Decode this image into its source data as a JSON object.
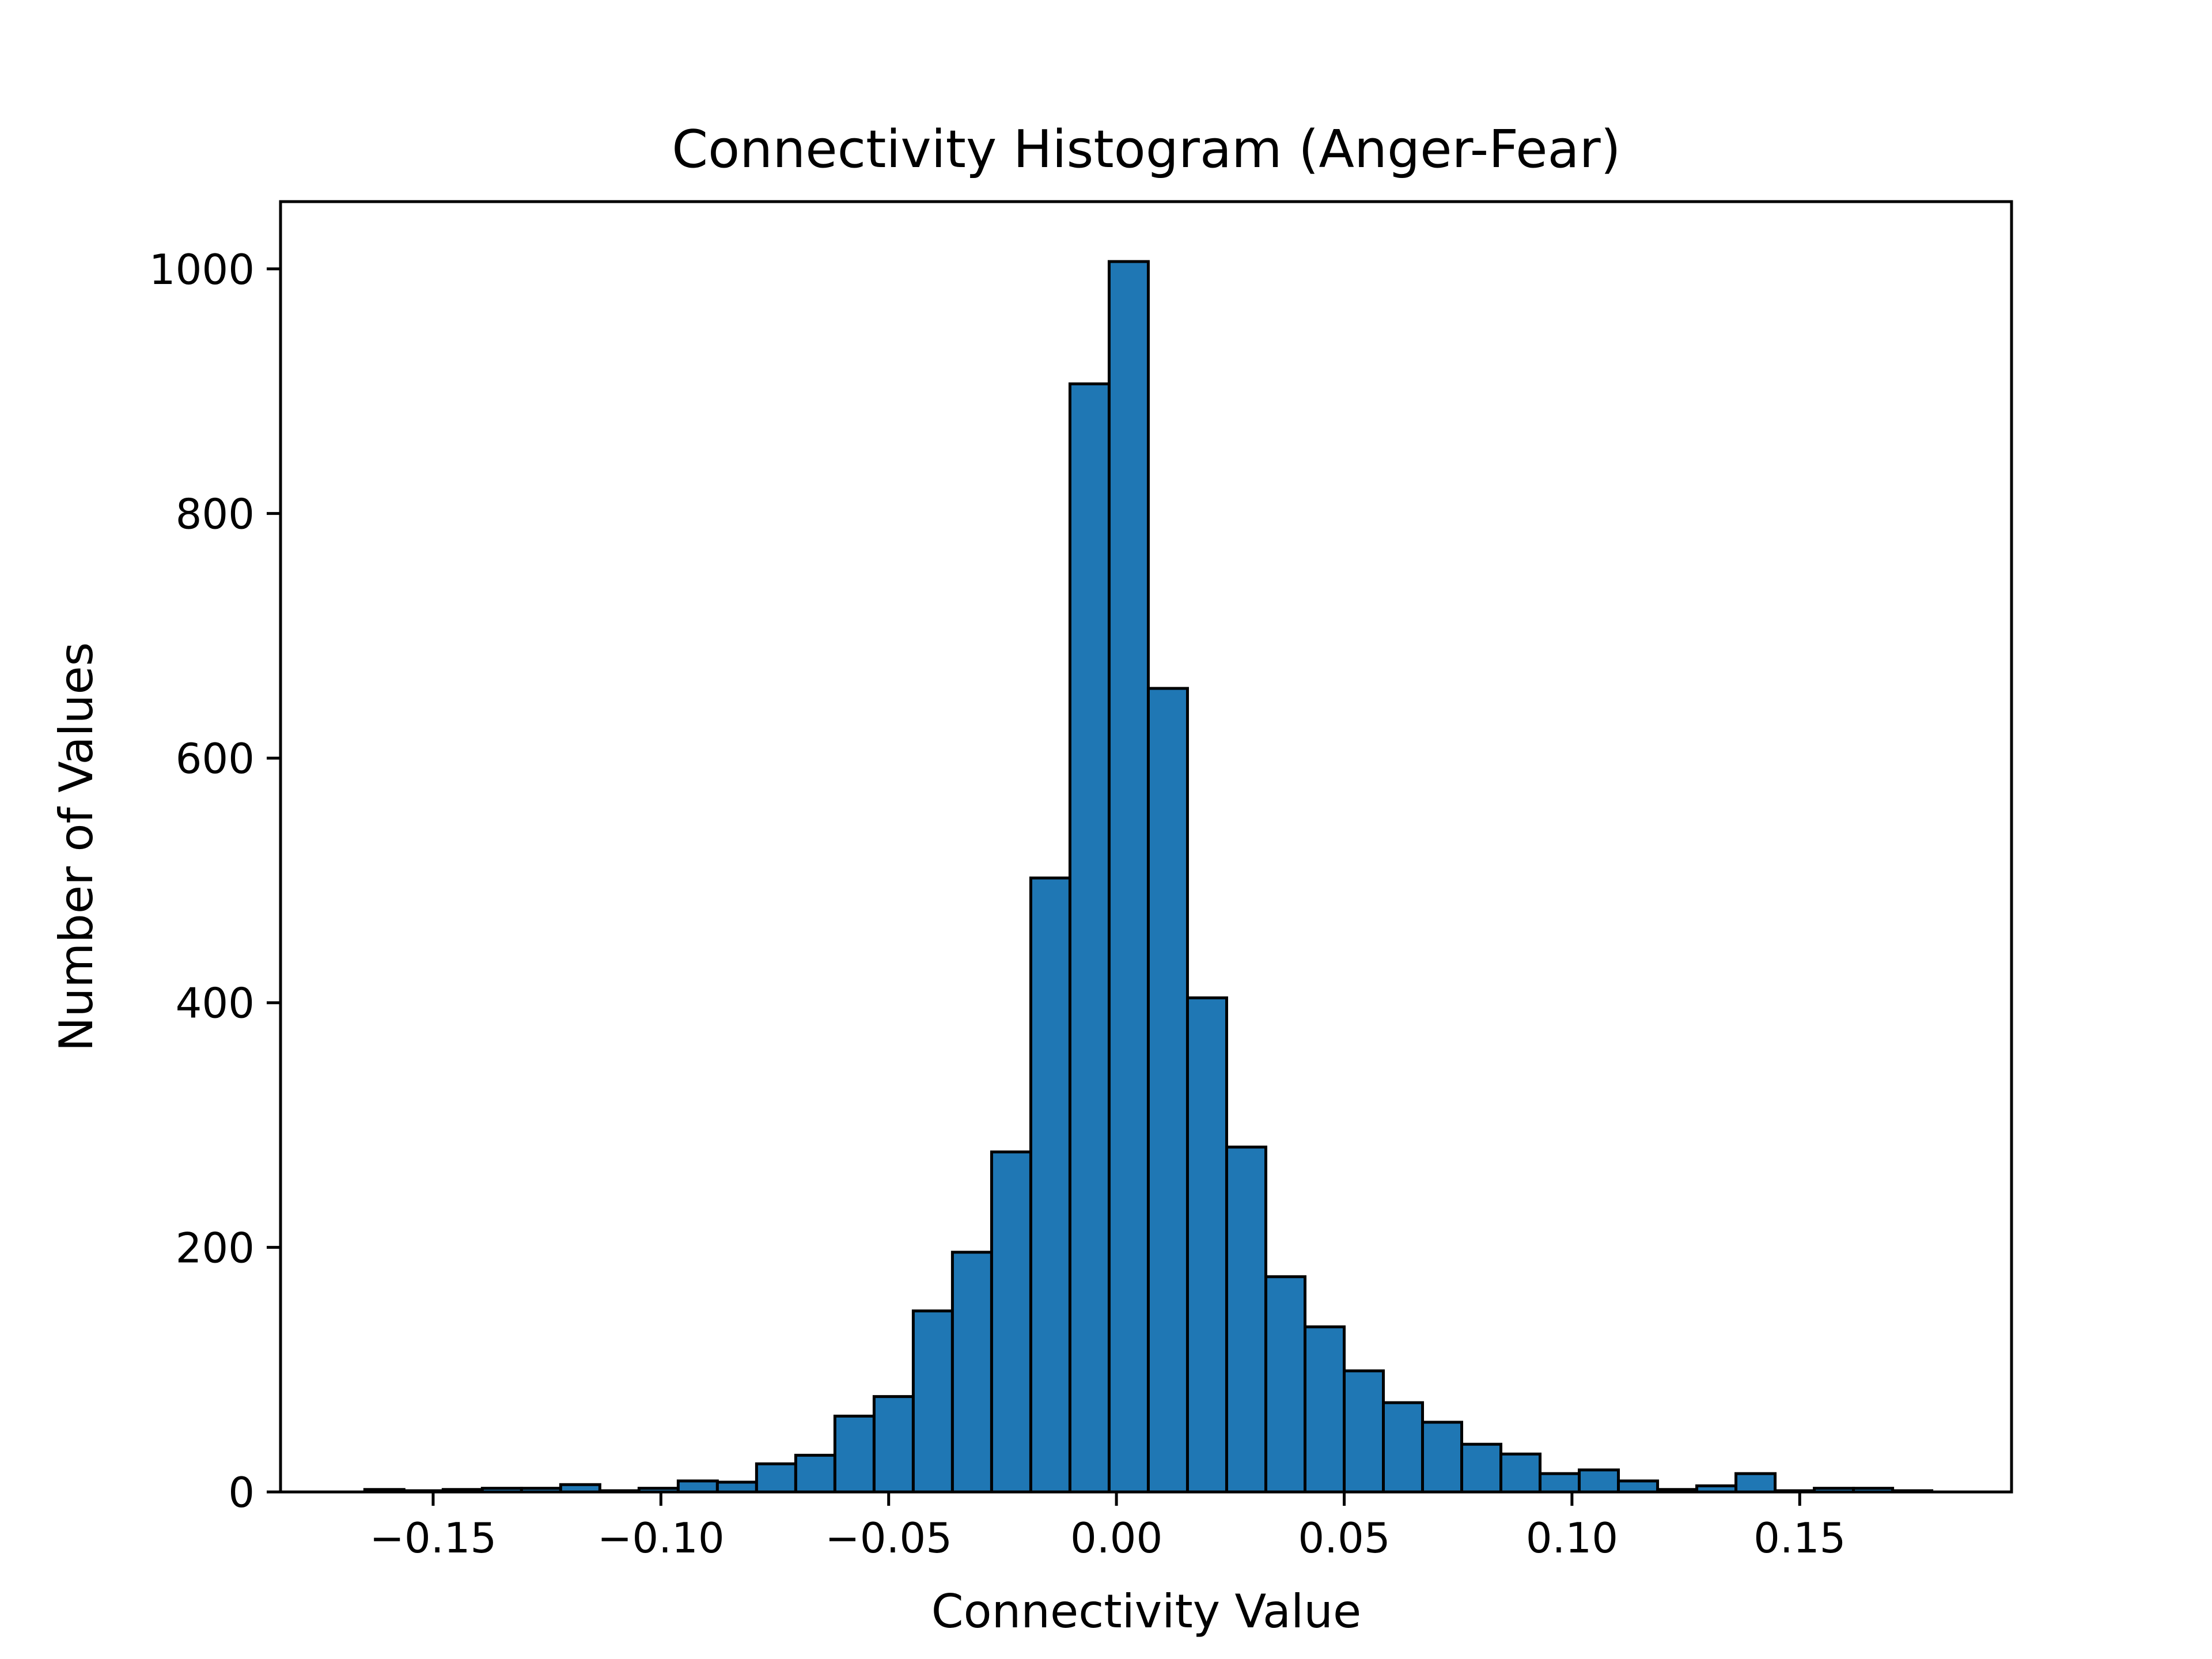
{
  "chart_data": {
    "type": "bar",
    "title": "Connectivity Histogram (Anger-Fear)",
    "xlabel": "Connectivity Value",
    "ylabel": "Number of Values",
    "xlim": [
      -0.1835,
      0.1965
    ],
    "ylim": [
      0,
      1055
    ],
    "bin_start": -0.165,
    "bin_width": 0.0086,
    "values": [
      2,
      1,
      2,
      3,
      3,
      6,
      1,
      3,
      9,
      8,
      23,
      30,
      62,
      78,
      148,
      196,
      278,
      502,
      906,
      1006,
      657,
      404,
      282,
      176,
      135,
      99,
      73,
      57,
      39,
      31,
      15,
      18,
      9,
      2,
      5,
      15,
      1,
      3,
      3,
      1
    ],
    "x_ticks": [
      {
        "value": -0.15,
        "label": "−0.15"
      },
      {
        "value": -0.1,
        "label": "−0.10"
      },
      {
        "value": -0.05,
        "label": "−0.05"
      },
      {
        "value": 0.0,
        "label": "0.00"
      },
      {
        "value": 0.05,
        "label": "0.05"
      },
      {
        "value": 0.1,
        "label": "0.10"
      },
      {
        "value": 0.15,
        "label": "0.15"
      }
    ],
    "y_ticks": [
      {
        "value": 0,
        "label": "0"
      },
      {
        "value": 200,
        "label": "200"
      },
      {
        "value": 400,
        "label": "400"
      },
      {
        "value": 600,
        "label": "600"
      },
      {
        "value": 800,
        "label": "800"
      },
      {
        "value": 1000,
        "label": "1000"
      }
    ],
    "grid": false,
    "legend": "none",
    "bar_color": "#1f77b4",
    "edge_color": "#000000"
  }
}
